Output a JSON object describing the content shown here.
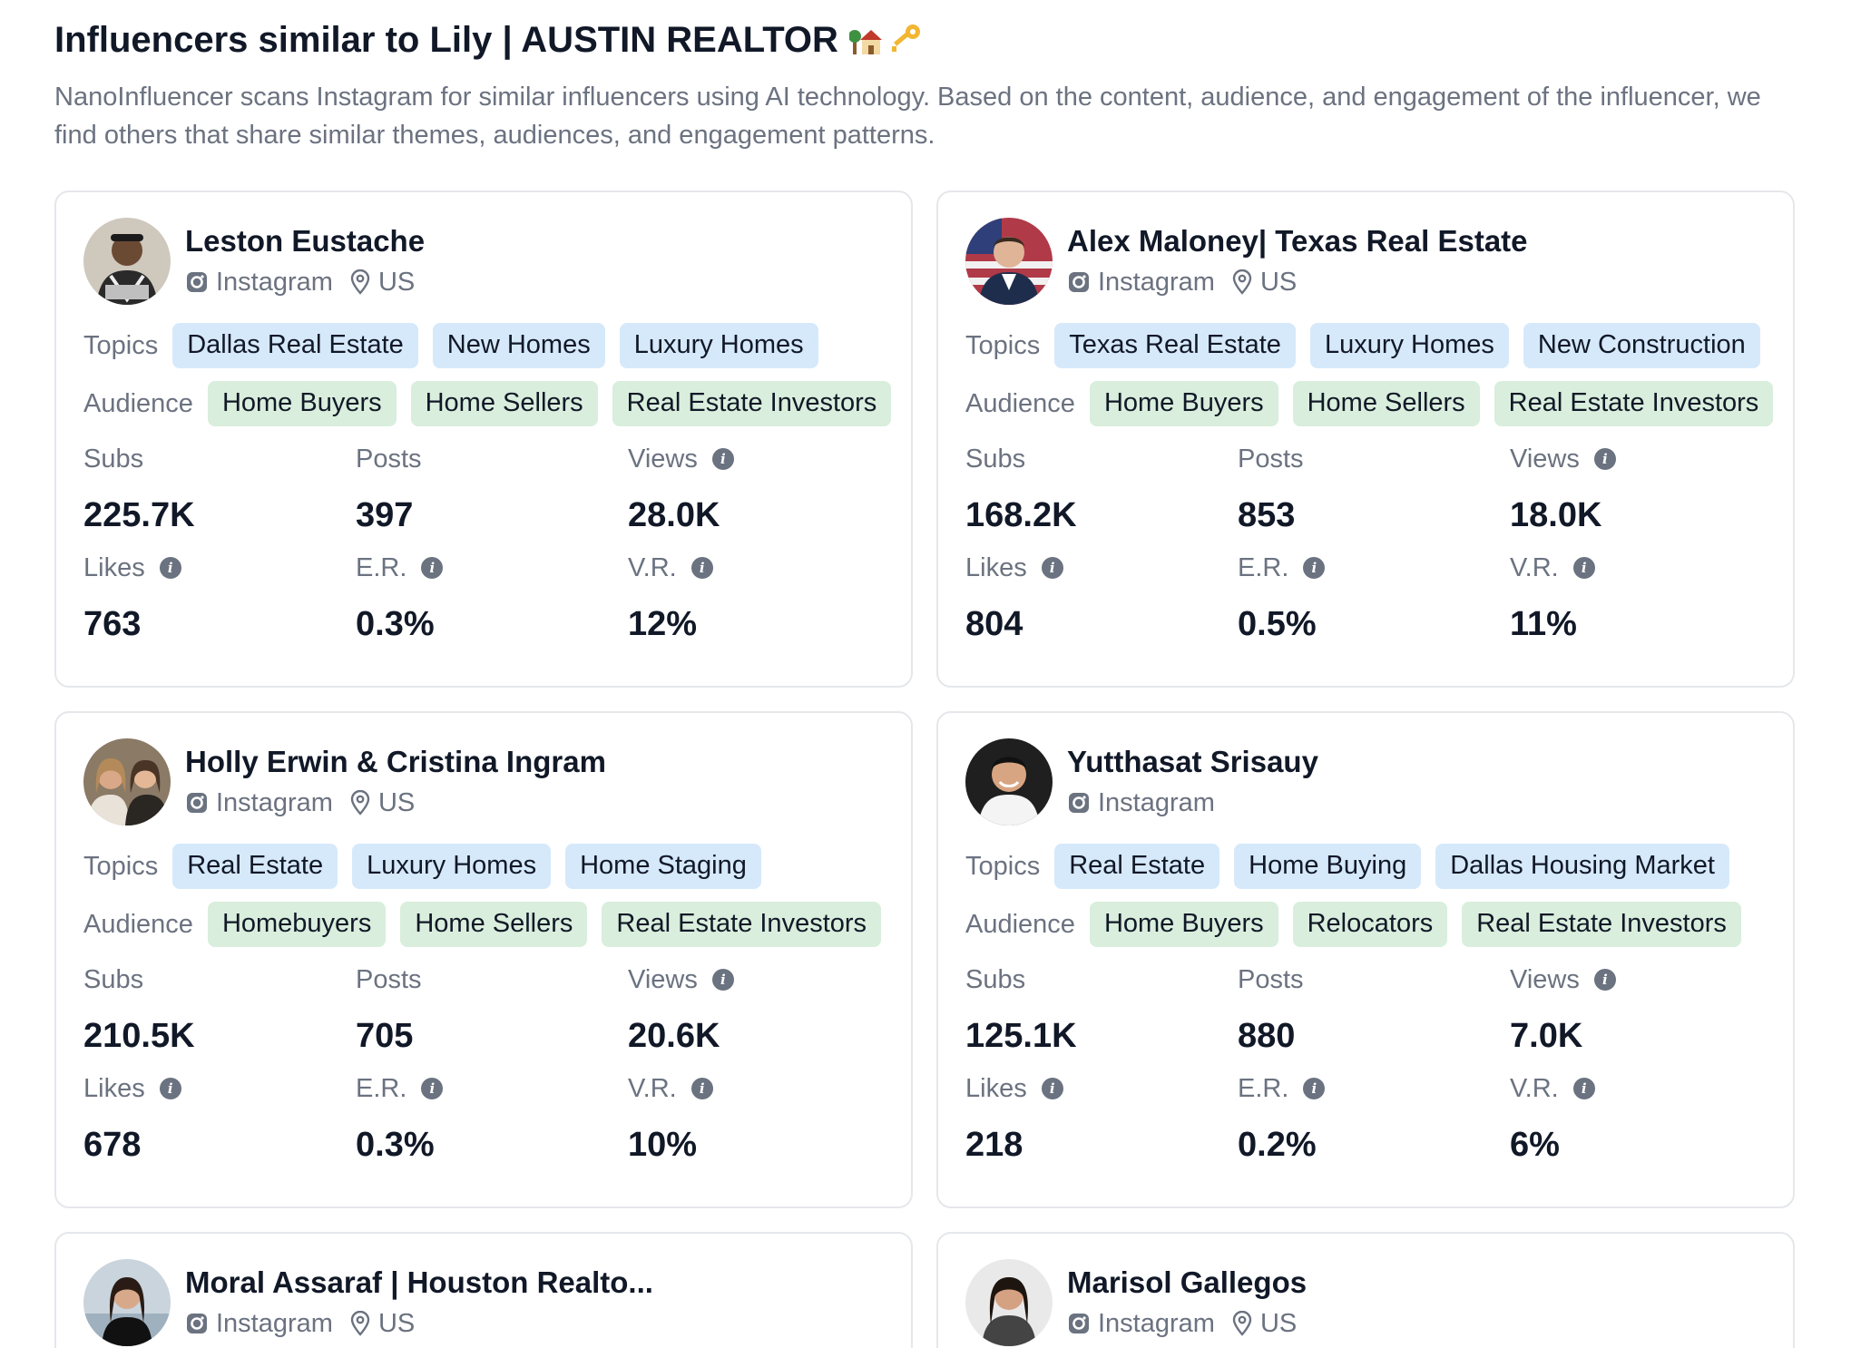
{
  "header": {
    "title": "Influencers similar to Lily | AUSTIN REALTOR",
    "description": "NanoInfluencer scans Instagram for similar influencers using AI technology. Based on the content, audience, and engagement of the influencer, we find others that share similar themes, audiences, and engagement patterns."
  },
  "labels": {
    "topics": "Topics",
    "audience": "Audience",
    "subs": "Subs",
    "posts": "Posts",
    "views": "Views",
    "likes": "Likes",
    "er": "E.R.",
    "vr": "V.R.",
    "platform": "Instagram"
  },
  "icons": {
    "platform": "instagram-icon",
    "location": "location-pin-icon",
    "info": "info-icon"
  },
  "colors": {
    "topic_chip": "#d6e9fb",
    "audience_chip": "#d9eedc"
  },
  "cards": [
    {
      "name": "Leston Eustache",
      "platform": "Instagram",
      "location": "US",
      "topics": [
        "Dallas Real Estate",
        "New Homes",
        "Luxury Homes"
      ],
      "audience": [
        "Home Buyers",
        "Home Sellers",
        "Real Estate Investors"
      ],
      "subs": "225.7K",
      "posts": "397",
      "views": "28.0K",
      "likes": "763",
      "er": "0.3%",
      "vr": "12%"
    },
    {
      "name": "Alex Maloney| Texas Real Estate",
      "platform": "Instagram",
      "location": "US",
      "topics": [
        "Texas Real Estate",
        "Luxury Homes",
        "New Construction"
      ],
      "audience": [
        "Home Buyers",
        "Home Sellers",
        "Real Estate Investors"
      ],
      "subs": "168.2K",
      "posts": "853",
      "views": "18.0K",
      "likes": "804",
      "er": "0.5%",
      "vr": "11%"
    },
    {
      "name": "Holly Erwin & Cristina Ingram",
      "platform": "Instagram",
      "location": "US",
      "topics": [
        "Real Estate",
        "Luxury Homes",
        "Home Staging"
      ],
      "audience": [
        "Homebuyers",
        "Home Sellers",
        "Real Estate Investors"
      ],
      "subs": "210.5K",
      "posts": "705",
      "views": "20.6K",
      "likes": "678",
      "er": "0.3%",
      "vr": "10%"
    },
    {
      "name": "Yutthasat Srisauy",
      "platform": "Instagram",
      "location": "",
      "topics": [
        "Real Estate",
        "Home Buying",
        "Dallas Housing Market"
      ],
      "audience": [
        "Home Buyers",
        "Relocators",
        "Real Estate Investors"
      ],
      "subs": "125.1K",
      "posts": "880",
      "views": "7.0K",
      "likes": "218",
      "er": "0.2%",
      "vr": "6%"
    },
    {
      "name": "Moral Assaraf | Houston Realto...",
      "platform": "Instagram",
      "location": "US"
    },
    {
      "name": "Marisol Gallegos",
      "platform": "Instagram",
      "location": "US"
    }
  ]
}
